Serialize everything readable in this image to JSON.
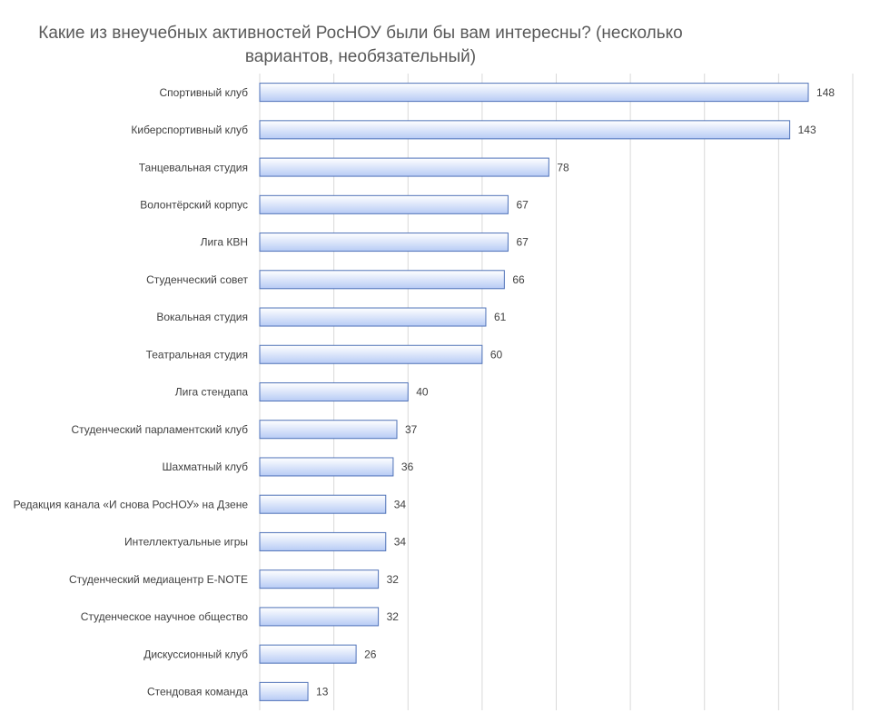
{
  "chart_data": {
    "type": "bar",
    "orientation": "horizontal",
    "title": "Какие из внеучебных активностей РосНОУ были бы вам интересны? (несколько вариантов, необязательный)",
    "categories": [
      "Спортивный клуб",
      "Киберспортивный клуб",
      "Танцевальная студия",
      "Волонтёрский корпус",
      "Лига КВН",
      "Студенческий совет",
      "Вокальная студия",
      "Театральная студия",
      "Лига стендапа",
      "Студенческий парламентский клуб",
      "Шахматный клуб",
      "Редакция канала «И снова РосНОУ» на Дзене",
      "Интеллектуальные игры",
      "Студенческий медиацентр E-NOTE",
      "Студенческое научное общество",
      "Дискуссионный клуб",
      "Стендовая команда"
    ],
    "values": [
      148,
      143,
      78,
      67,
      67,
      66,
      61,
      60,
      40,
      37,
      36,
      34,
      34,
      32,
      32,
      26,
      13
    ],
    "color": "#b7cbf5",
    "border_color": "#4f72b8",
    "xlim": [
      0,
      160
    ],
    "xticks": [
      0,
      20,
      40,
      60,
      80,
      100,
      120,
      140,
      160
    ],
    "grid": true
  }
}
